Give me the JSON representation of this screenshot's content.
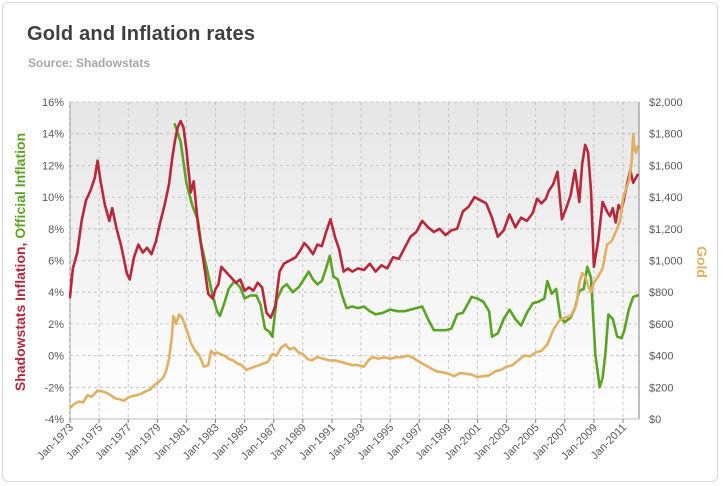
{
  "header": {
    "title": "Gold and Inflation rates",
    "subtitle": "Source: Shadowstats"
  },
  "colors": {
    "shadowstats": "#b8283a",
    "official": "#5aa423",
    "gold": "#e0b063",
    "grid": "#b9b9b9",
    "plot_top": "#e6e6e6",
    "plot_bottom": "#ffffff"
  },
  "chart_data": {
    "type": "line",
    "title": "Gold and Inflation rates",
    "subtitle": "Source: Shadowstats",
    "xlabel": "",
    "ylabel_left_parts": [
      "Shadowstats Inflation",
      ", ",
      "Official Inflation"
    ],
    "ylabel_right": "Gold",
    "x_range": [
      1973,
      2012.1
    ],
    "ylim_left": [
      -4,
      16
    ],
    "ylim_right": [
      0,
      2000
    ],
    "yticks_left": [
      "16%",
      "14%",
      "12%",
      "10%",
      "8%",
      "6%",
      "4%",
      "2%",
      "0%",
      "-2%",
      "-4%"
    ],
    "yticks_right": [
      "$2,000",
      "$1,800",
      "$1,600",
      "$1,400",
      "$1,200",
      "$1,000",
      "$800",
      "$600",
      "$400",
      "$200",
      "$0"
    ],
    "xticks": [
      "Jan-1973",
      "Jan-1975",
      "Jan-1977",
      "Jan-1979",
      "Jan-1981",
      "Jan-1983",
      "Jan-1985",
      "Jan-1987",
      "Jan-1989",
      "Jan-1991",
      "Jan-1993",
      "Jan-1995",
      "Jan-1997",
      "Jan-1999",
      "Jan-2001",
      "Jan-2003",
      "Jan-2005",
      "Jan-2007",
      "Jan-2009",
      "Jan-2011"
    ],
    "legend": "none",
    "series": [
      {
        "name": "Official Inflation",
        "axis": "left",
        "x": [
          1980.2,
          1980.6,
          1981.0,
          1981.4,
          1981.8,
          1982.0,
          1982.4,
          1982.8,
          1983.1,
          1983.3,
          1983.6,
          1983.9,
          1984.3,
          1984.7,
          1985.0,
          1985.4,
          1985.8,
          1986.1,
          1986.4,
          1986.7,
          1986.9,
          1987.2,
          1987.6,
          1987.9,
          1988.3,
          1988.7,
          1989.0,
          1989.4,
          1989.7,
          1990.0,
          1990.3,
          1990.6,
          1990.85,
          1991.1,
          1991.4,
          1991.7,
          1992.0,
          1992.4,
          1992.8,
          1993.2,
          1993.6,
          1994.0,
          1994.5,
          1995.0,
          1995.5,
          1996.0,
          1996.4,
          1996.8,
          1997.2,
          1997.6,
          1998.0,
          1998.4,
          1998.8,
          1999.2,
          1999.6,
          2000.0,
          2000.3,
          2000.6,
          2001.0,
          2001.4,
          2001.8,
          2002.0,
          2002.4,
          2002.8,
          2003.2,
          2003.6,
          2004.0,
          2004.4,
          2004.8,
          2005.2,
          2005.6,
          2005.8,
          2006.1,
          2006.4,
          2006.7,
          2007.0,
          2007.4,
          2007.7,
          2008.0,
          2008.3,
          2008.55,
          2008.8,
          2009.1,
          2009.4,
          2009.6,
          2009.8,
          2010.0,
          2010.3,
          2010.6,
          2010.9,
          2011.1,
          2011.4,
          2011.7,
          2012.0
        ],
        "values": [
          14.6,
          13.5,
          10.9,
          9.5,
          8.5,
          7.1,
          5.5,
          3.8,
          2.8,
          2.5,
          3.3,
          4.2,
          4.7,
          4.3,
          3.6,
          3.8,
          3.8,
          3.2,
          1.7,
          1.5,
          1.2,
          3.5,
          4.3,
          4.5,
          4.0,
          4.3,
          4.7,
          5.3,
          4.8,
          4.5,
          4.7,
          5.5,
          6.3,
          5.0,
          4.8,
          3.8,
          3.0,
          3.1,
          3.0,
          3.1,
          2.8,
          2.6,
          2.7,
          2.9,
          2.8,
          2.8,
          2.9,
          3.0,
          3.1,
          2.3,
          1.6,
          1.6,
          1.6,
          1.7,
          2.6,
          2.7,
          3.2,
          3.7,
          3.6,
          3.4,
          2.8,
          1.2,
          1.4,
          2.3,
          2.9,
          2.3,
          1.9,
          2.7,
          3.3,
          3.4,
          3.6,
          4.7,
          3.9,
          4.2,
          2.4,
          2.1,
          2.4,
          3.0,
          4.1,
          4.2,
          5.6,
          4.9,
          0.1,
          -2.0,
          -1.4,
          0.2,
          2.6,
          2.3,
          1.2,
          1.1,
          1.6,
          2.9,
          3.7,
          3.8
        ]
      },
      {
        "name": "Shadowstats Inflation",
        "axis": "left",
        "x": [
          1973.0,
          1973.2,
          1973.5,
          1973.8,
          1974.1,
          1974.4,
          1974.7,
          1974.9,
          1975.1,
          1975.4,
          1975.7,
          1975.9,
          1976.2,
          1976.5,
          1976.9,
          1977.1,
          1977.4,
          1977.7,
          1978.0,
          1978.3,
          1978.6,
          1978.9,
          1979.2,
          1979.5,
          1979.8,
          1980.0,
          1980.2,
          1980.4,
          1980.6,
          1980.8,
          1981.0,
          1981.3,
          1981.5,
          1981.8,
          1982.0,
          1982.3,
          1982.5,
          1982.8,
          1983.0,
          1983.2,
          1983.4,
          1983.7,
          1984.0,
          1984.4,
          1984.7,
          1985.0,
          1985.3,
          1985.6,
          1985.9,
          1986.2,
          1986.5,
          1986.8,
          1987.1,
          1987.4,
          1987.7,
          1988.1,
          1988.5,
          1988.8,
          1989.1,
          1989.4,
          1989.7,
          1990.0,
          1990.3,
          1990.6,
          1990.9,
          1991.2,
          1991.5,
          1991.8,
          1992.1,
          1992.4,
          1992.8,
          1993.2,
          1993.6,
          1994.0,
          1994.4,
          1994.8,
          1995.2,
          1995.6,
          1996.0,
          1996.4,
          1996.8,
          1997.2,
          1997.6,
          1998.0,
          1998.4,
          1998.8,
          1999.2,
          1999.6,
          2000.0,
          2000.4,
          2000.8,
          2001.2,
          2001.6,
          2002.0,
          2002.4,
          2002.8,
          2003.2,
          2003.6,
          2004.0,
          2004.4,
          2004.8,
          2005.1,
          2005.4,
          2005.7,
          2005.9,
          2006.2,
          2006.5,
          2006.8,
          2007.1,
          2007.4,
          2007.7,
          2008.0,
          2008.2,
          2008.4,
          2008.6,
          2008.8,
          2009.0,
          2009.3,
          2009.6,
          2009.9,
          2010.1,
          2010.3,
          2010.5,
          2010.7,
          2010.9,
          2011.1,
          2011.3,
          2011.5,
          2011.7,
          2012.0
        ],
        "values": [
          3.7,
          5.5,
          6.5,
          8.5,
          9.8,
          10.4,
          11.2,
          12.3,
          11.0,
          9.5,
          8.5,
          9.3,
          8.0,
          7.0,
          5.2,
          4.8,
          6.2,
          7.0,
          6.5,
          6.8,
          6.4,
          7.2,
          8.4,
          9.5,
          10.8,
          12.3,
          13.5,
          14.4,
          14.8,
          14.4,
          13.0,
          10.3,
          11.0,
          8.2,
          7.0,
          5.2,
          3.9,
          3.6,
          4.2,
          4.5,
          5.6,
          5.3,
          5.0,
          4.6,
          4.8,
          4.1,
          4.3,
          4.1,
          4.6,
          4.3,
          2.7,
          2.4,
          3.1,
          5.3,
          5.8,
          6.0,
          6.2,
          6.6,
          7.1,
          6.8,
          6.4,
          7.0,
          6.9,
          7.8,
          8.6,
          7.5,
          6.7,
          5.3,
          5.5,
          5.3,
          5.5,
          5.4,
          5.8,
          5.3,
          5.7,
          5.5,
          6.2,
          6.1,
          6.8,
          7.5,
          7.8,
          8.5,
          8.1,
          7.8,
          8.0,
          7.6,
          7.9,
          8.0,
          9.1,
          9.4,
          10.0,
          9.8,
          9.6,
          8.7,
          7.5,
          7.9,
          8.9,
          8.1,
          8.7,
          8.5,
          9.0,
          9.9,
          9.6,
          9.9,
          10.4,
          10.8,
          11.6,
          8.6,
          9.3,
          10.1,
          11.7,
          9.7,
          12.1,
          13.3,
          12.8,
          10.4,
          5.6,
          7.3,
          9.7,
          9.1,
          8.8,
          9.3,
          8.4,
          9.5,
          9.2,
          10.0,
          10.9,
          11.7,
          10.9,
          11.4
        ]
      },
      {
        "name": "Gold",
        "axis": "right",
        "x": [
          1973.0,
          1973.3,
          1973.6,
          1973.9,
          1974.2,
          1974.5,
          1974.9,
          1975.2,
          1975.5,
          1975.8,
          1976.1,
          1976.4,
          1976.7,
          1977.0,
          1977.3,
          1977.6,
          1977.9,
          1978.2,
          1978.5,
          1978.8,
          1979.1,
          1979.4,
          1979.6,
          1979.8,
          1980.0,
          1980.1,
          1980.3,
          1980.5,
          1980.7,
          1980.9,
          1981.1,
          1981.3,
          1981.6,
          1981.9,
          1982.2,
          1982.5,
          1982.7,
          1982.9,
          1983.1,
          1983.3,
          1983.6,
          1983.9,
          1984.2,
          1984.5,
          1984.8,
          1985.1,
          1985.4,
          1985.7,
          1986.0,
          1986.3,
          1986.6,
          1986.9,
          1987.2,
          1987.5,
          1987.8,
          1988.1,
          1988.4,
          1988.7,
          1989.0,
          1989.3,
          1989.6,
          1990.0,
          1990.4,
          1990.8,
          1991.2,
          1991.6,
          1992.0,
          1992.4,
          1992.8,
          1993.2,
          1993.5,
          1993.8,
          1994.2,
          1994.6,
          1995.0,
          1995.4,
          1995.8,
          1996.2,
          1996.6,
          1997.0,
          1997.4,
          1997.8,
          1998.2,
          1998.6,
          1999.0,
          1999.4,
          1999.8,
          2000.2,
          2000.6,
          2001.0,
          2001.4,
          2001.8,
          2002.2,
          2002.6,
          2003.0,
          2003.4,
          2003.8,
          2004.2,
          2004.6,
          2005.0,
          2005.4,
          2005.8,
          2006.2,
          2006.6,
          2007.0,
          2007.4,
          2007.8,
          2008.0,
          2008.2,
          2008.4,
          2008.6,
          2008.8,
          2009.0,
          2009.3,
          2009.6,
          2009.9,
          2010.2,
          2010.5,
          2010.8,
          2011.0,
          2011.2,
          2011.4,
          2011.6,
          2011.7,
          2011.8,
          2011.9,
          2012.0
        ],
        "values": [
          70,
          95,
          110,
          105,
          150,
          140,
          180,
          175,
          165,
          150,
          130,
          125,
          115,
          135,
          145,
          150,
          160,
          175,
          185,
          215,
          235,
          260,
          300,
          380,
          520,
          650,
          600,
          660,
          640,
          590,
          540,
          480,
          430,
          400,
          330,
          340,
          430,
          410,
          420,
          410,
          400,
          380,
          370,
          350,
          340,
          310,
          320,
          330,
          340,
          350,
          360,
          410,
          400,
          450,
          470,
          440,
          450,
          420,
          410,
          380,
          370,
          390,
          380,
          370,
          370,
          360,
          350,
          340,
          340,
          330,
          370,
          390,
          380,
          390,
          380,
          390,
          390,
          400,
          385,
          360,
          340,
          320,
          300,
          295,
          285,
          270,
          290,
          285,
          280,
          265,
          270,
          275,
          300,
          310,
          330,
          340,
          370,
          400,
          395,
          420,
          430,
          470,
          560,
          620,
          640,
          650,
          720,
          860,
          920,
          900,
          840,
          800,
          860,
          900,
          950,
          1100,
          1120,
          1180,
          1250,
          1390,
          1450,
          1500,
          1620,
          1800,
          1700,
          1680,
          1720
        ]
      }
    ]
  }
}
